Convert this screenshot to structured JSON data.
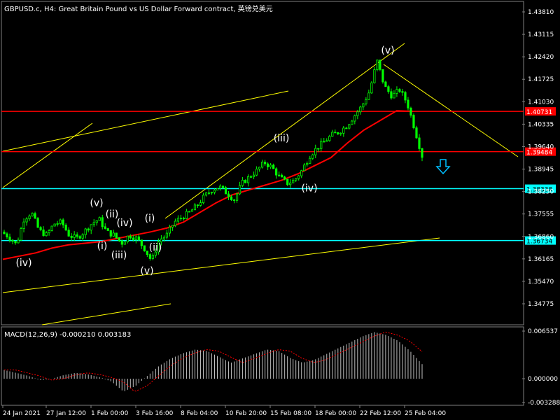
{
  "header": {
    "title": "GBPUSD.c, H4:  Great Britain Pound vs US Dollar Forward contract, 英镑兑美元"
  },
  "macd": {
    "label": "MACD(12,26,9) -0.000210 0.003183",
    "ticks": [
      "0.006537",
      "0.000000",
      "-0.003288"
    ]
  },
  "colors": {
    "background": "#000000",
    "candle": "#00ff00",
    "ma": "#ff0000",
    "hline_red": "#ff0000",
    "hline_cyan": "#00ffff",
    "trendline": "#ffff00",
    "arrow": "#00bfff",
    "macd_hist": "#c0c0c0",
    "macd_signal": "#ff0000",
    "text": "#ffffff"
  },
  "chart_data": {
    "type": "candlestick",
    "symbol": "GBPUSD.c",
    "timeframe": "H4",
    "ylim": [
      1.3413,
      1.4413
    ],
    "y_ticks": [
      "1.43810",
      "1.43115",
      "1.42420",
      "1.41725",
      "1.41030",
      "1.40335",
      "1.39640",
      "1.38945",
      "1.38250",
      "1.37555",
      "1.36860",
      "1.36165",
      "1.35470",
      "1.34775"
    ],
    "x_ticks": [
      "24 Jan 2021",
      "27 Jan 12:00",
      "1 Feb 00:00",
      "3 Feb 16:00",
      "8 Feb 04:00",
      "10 Feb 20:00",
      "15 Feb 08:00",
      "18 Feb 00:00",
      "22 Feb 12:00",
      "25 Feb 04:00"
    ],
    "price_path": [
      1.37,
      1.3685,
      1.366,
      1.374,
      1.376,
      1.3705,
      1.369,
      1.3725,
      1.373,
      1.369,
      1.368,
      1.37,
      1.3725,
      1.374,
      1.37,
      1.369,
      1.3665,
      1.369,
      1.368,
      1.365,
      1.361,
      1.3675,
      1.369,
      1.373,
      1.3745,
      1.376,
      1.378,
      1.381,
      1.383,
      1.384,
      1.382,
      1.38,
      1.385,
      1.387,
      1.389,
      1.3915,
      1.39,
      1.387,
      1.385,
      1.386,
      1.389,
      1.3935,
      1.396,
      1.398,
      1.4,
      1.401,
      1.403,
      1.406,
      1.409,
      1.4135,
      1.423,
      1.415,
      1.412,
      1.414,
      1.41,
      1.402,
      1.3935
    ],
    "moving_average": [
      1.3615,
      1.3625,
      1.3635,
      1.365,
      1.366,
      1.3665,
      1.367,
      1.368,
      1.369,
      1.37,
      1.3712,
      1.373,
      1.376,
      1.379,
      1.3815,
      1.383,
      1.3845,
      1.386,
      1.388,
      1.3905,
      1.393,
      1.3975,
      1.4015,
      1.4045,
      1.4075,
      1.4073
    ],
    "horizontal_lines": [
      {
        "label": "1.40731",
        "value": 1.40731,
        "color": "#ff0000"
      },
      {
        "label": "1.39484",
        "value": 1.39484,
        "color": "#ff0000"
      },
      {
        "label": "1.38338",
        "value": 1.38338,
        "color": "#00ffff"
      },
      {
        "label": "1.36734",
        "value": 1.36734,
        "color": "#00ffff"
      }
    ],
    "wave_labels": [
      {
        "text": "(iv)",
        "value": 1.3595
      },
      {
        "text": "(v)",
        "value": 1.378
      },
      {
        "text": "(ii)",
        "value": 1.3745
      },
      {
        "text": "(iv)",
        "value": 1.3718
      },
      {
        "text": "(i)",
        "value": 1.3646
      },
      {
        "text": "(iii)",
        "value": 1.3618
      },
      {
        "text": "(i)",
        "value": 1.3732
      },
      {
        "text": "(ii)",
        "value": 1.3642
      },
      {
        "text": "(v)",
        "value": 1.357
      },
      {
        "text": "(iii)",
        "value": 1.398
      },
      {
        "text": "(iv)",
        "value": 1.3825
      },
      {
        "text": "(v)",
        "value": 1.4252
      }
    ],
    "macd_histogram": [
      0.0012,
      0.0008,
      0.0004,
      -0.0002,
      0.0,
      0.0005,
      0.0008,
      0.0006,
      0.0002,
      -0.0004,
      -0.0018,
      -0.001,
      0.0004,
      0.0018,
      0.0028,
      0.0035,
      0.004,
      0.0038,
      0.003,
      0.0022,
      0.0028,
      0.0034,
      0.004,
      0.0038,
      0.0028,
      0.0022,
      0.0026,
      0.0034,
      0.0042,
      0.005,
      0.0058,
      0.0064,
      0.006,
      0.0052,
      0.0038,
      0.002
    ]
  }
}
